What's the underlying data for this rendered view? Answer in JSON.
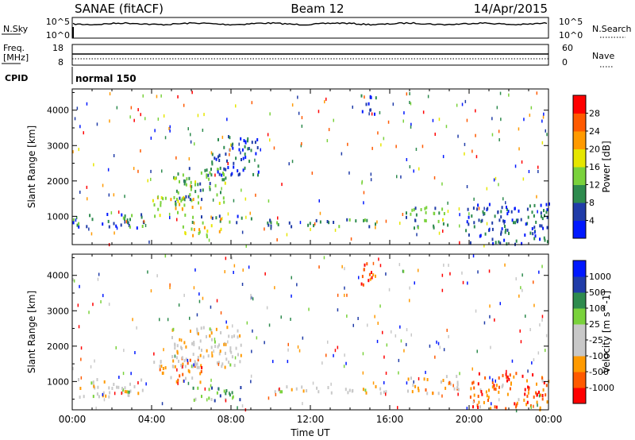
{
  "header": {
    "station": "SANAE (fitACF)",
    "beam": "Beam 12",
    "date": "14/Apr/2015"
  },
  "top_panels": {
    "nsky_label": "N.Sky",
    "nsearch_label": "N.Search",
    "nsky_ticks": [
      "10^5",
      "10^0"
    ],
    "nsearch_ticks": [
      "10^5",
      "10^0"
    ],
    "freq_label": "Freq.",
    "freq_unit": "[MHz]",
    "freq_ticks": [
      "18",
      "8"
    ],
    "nave_label": "Nave",
    "nave_ticks": [
      "60",
      "0"
    ],
    "cpid_label": "CPID",
    "cpid_value": "normal 150"
  },
  "colors": {
    "scale": [
      "#0018ff",
      "#203ca8",
      "#2e8b4e",
      "#7ad23c",
      "#e6e600",
      "#ff9a00",
      "#ff5a00",
      "#ff0000"
    ],
    "velocity_scale": [
      "#ff0000",
      "#ff5a00",
      "#ff9a00",
      "#c8c8c8",
      "#c8c8c8",
      "#7ad23c",
      "#2e8b4e",
      "#203ca8",
      "#0018ff"
    ]
  },
  "chart_data": [
    {
      "type": "heatmap",
      "panel": "power",
      "ylabel": "Slant Range [km]",
      "xlabel": "",
      "x_ticks": [
        "",
        "",
        "",
        "",
        "",
        "",
        ""
      ],
      "y_ticks": [
        1000,
        2000,
        3000,
        4000
      ],
      "ylim": [
        200,
        4600
      ],
      "xlim": [
        0,
        24
      ],
      "colorbar": {
        "label": "Power [dB]",
        "ticks": [
          "28",
          "24",
          "20",
          "16",
          "12",
          "8",
          "4"
        ],
        "range": [
          0,
          30
        ]
      },
      "regions": [
        {
          "x0": 0.0,
          "x1": 3.6,
          "y0": 700,
          "y1": 1100,
          "level": 0.25
        },
        {
          "x0": 4.0,
          "x1": 6.2,
          "y0": 1000,
          "y1": 1600,
          "level": 0.55
        },
        {
          "x0": 5.0,
          "x1": 8.0,
          "y0": 1400,
          "y1": 2400,
          "level": 0.35
        },
        {
          "x0": 5.5,
          "x1": 7.5,
          "y0": 450,
          "y1": 800,
          "level": 0.55
        },
        {
          "x0": 6.0,
          "x1": 9.0,
          "y0": 850,
          "y1": 1050,
          "level": 0.25
        },
        {
          "x0": 7.0,
          "x1": 9.5,
          "y0": 2200,
          "y1": 3300,
          "level": 0.2
        },
        {
          "x0": 9.8,
          "x1": 15.8,
          "y0": 750,
          "y1": 950,
          "level": 0.3
        },
        {
          "x0": 14.5,
          "x1": 15.3,
          "y0": 3900,
          "y1": 4500,
          "level": 0.2
        },
        {
          "x0": 16.8,
          "x1": 19.0,
          "y0": 700,
          "y1": 1300,
          "level": 0.35
        },
        {
          "x0": 19.8,
          "x1": 24.0,
          "y0": 250,
          "y1": 1400,
          "level": 0.2
        }
      ]
    },
    {
      "type": "heatmap",
      "panel": "velocity",
      "ylabel": "Slant Range [km]",
      "xlabel": "Time UT",
      "x_ticks": [
        "00:00",
        "04:00",
        "08:00",
        "12:00",
        "16:00",
        "20:00",
        "00:00"
      ],
      "y_ticks": [
        1000,
        2000,
        3000,
        4000
      ],
      "ylim": [
        200,
        4600
      ],
      "xlim": [
        0,
        24
      ],
      "colorbar": {
        "label": "Velocity [m s^-1]",
        "ticks": [
          "1000",
          "500",
          "100",
          "25",
          "-25",
          "-100",
          "-500",
          "-1000"
        ],
        "range": [
          -1000,
          1000
        ]
      },
      "regions": [
        {
          "x0": 0.0,
          "x1": 3.6,
          "y0": 600,
          "y1": 1100,
          "level": 0.45
        },
        {
          "x0": 4.0,
          "x1": 6.5,
          "y0": 1000,
          "y1": 1700,
          "level": 0.25
        },
        {
          "x0": 5.0,
          "x1": 8.5,
          "y0": 1400,
          "y1": 2600,
          "level": 0.4
        },
        {
          "x0": 6.0,
          "x1": 8.5,
          "y0": 500,
          "y1": 900,
          "level": 0.7
        },
        {
          "x0": 9.8,
          "x1": 15.8,
          "y0": 700,
          "y1": 900,
          "level": 0.45
        },
        {
          "x0": 14.5,
          "x1": 15.3,
          "y0": 3700,
          "y1": 4500,
          "level": 0.15
        },
        {
          "x0": 16.8,
          "x1": 19.5,
          "y0": 700,
          "y1": 1200,
          "level": 0.35
        },
        {
          "x0": 20.0,
          "x1": 24.0,
          "y0": 250,
          "y1": 1300,
          "level": 0.2
        }
      ]
    }
  ]
}
